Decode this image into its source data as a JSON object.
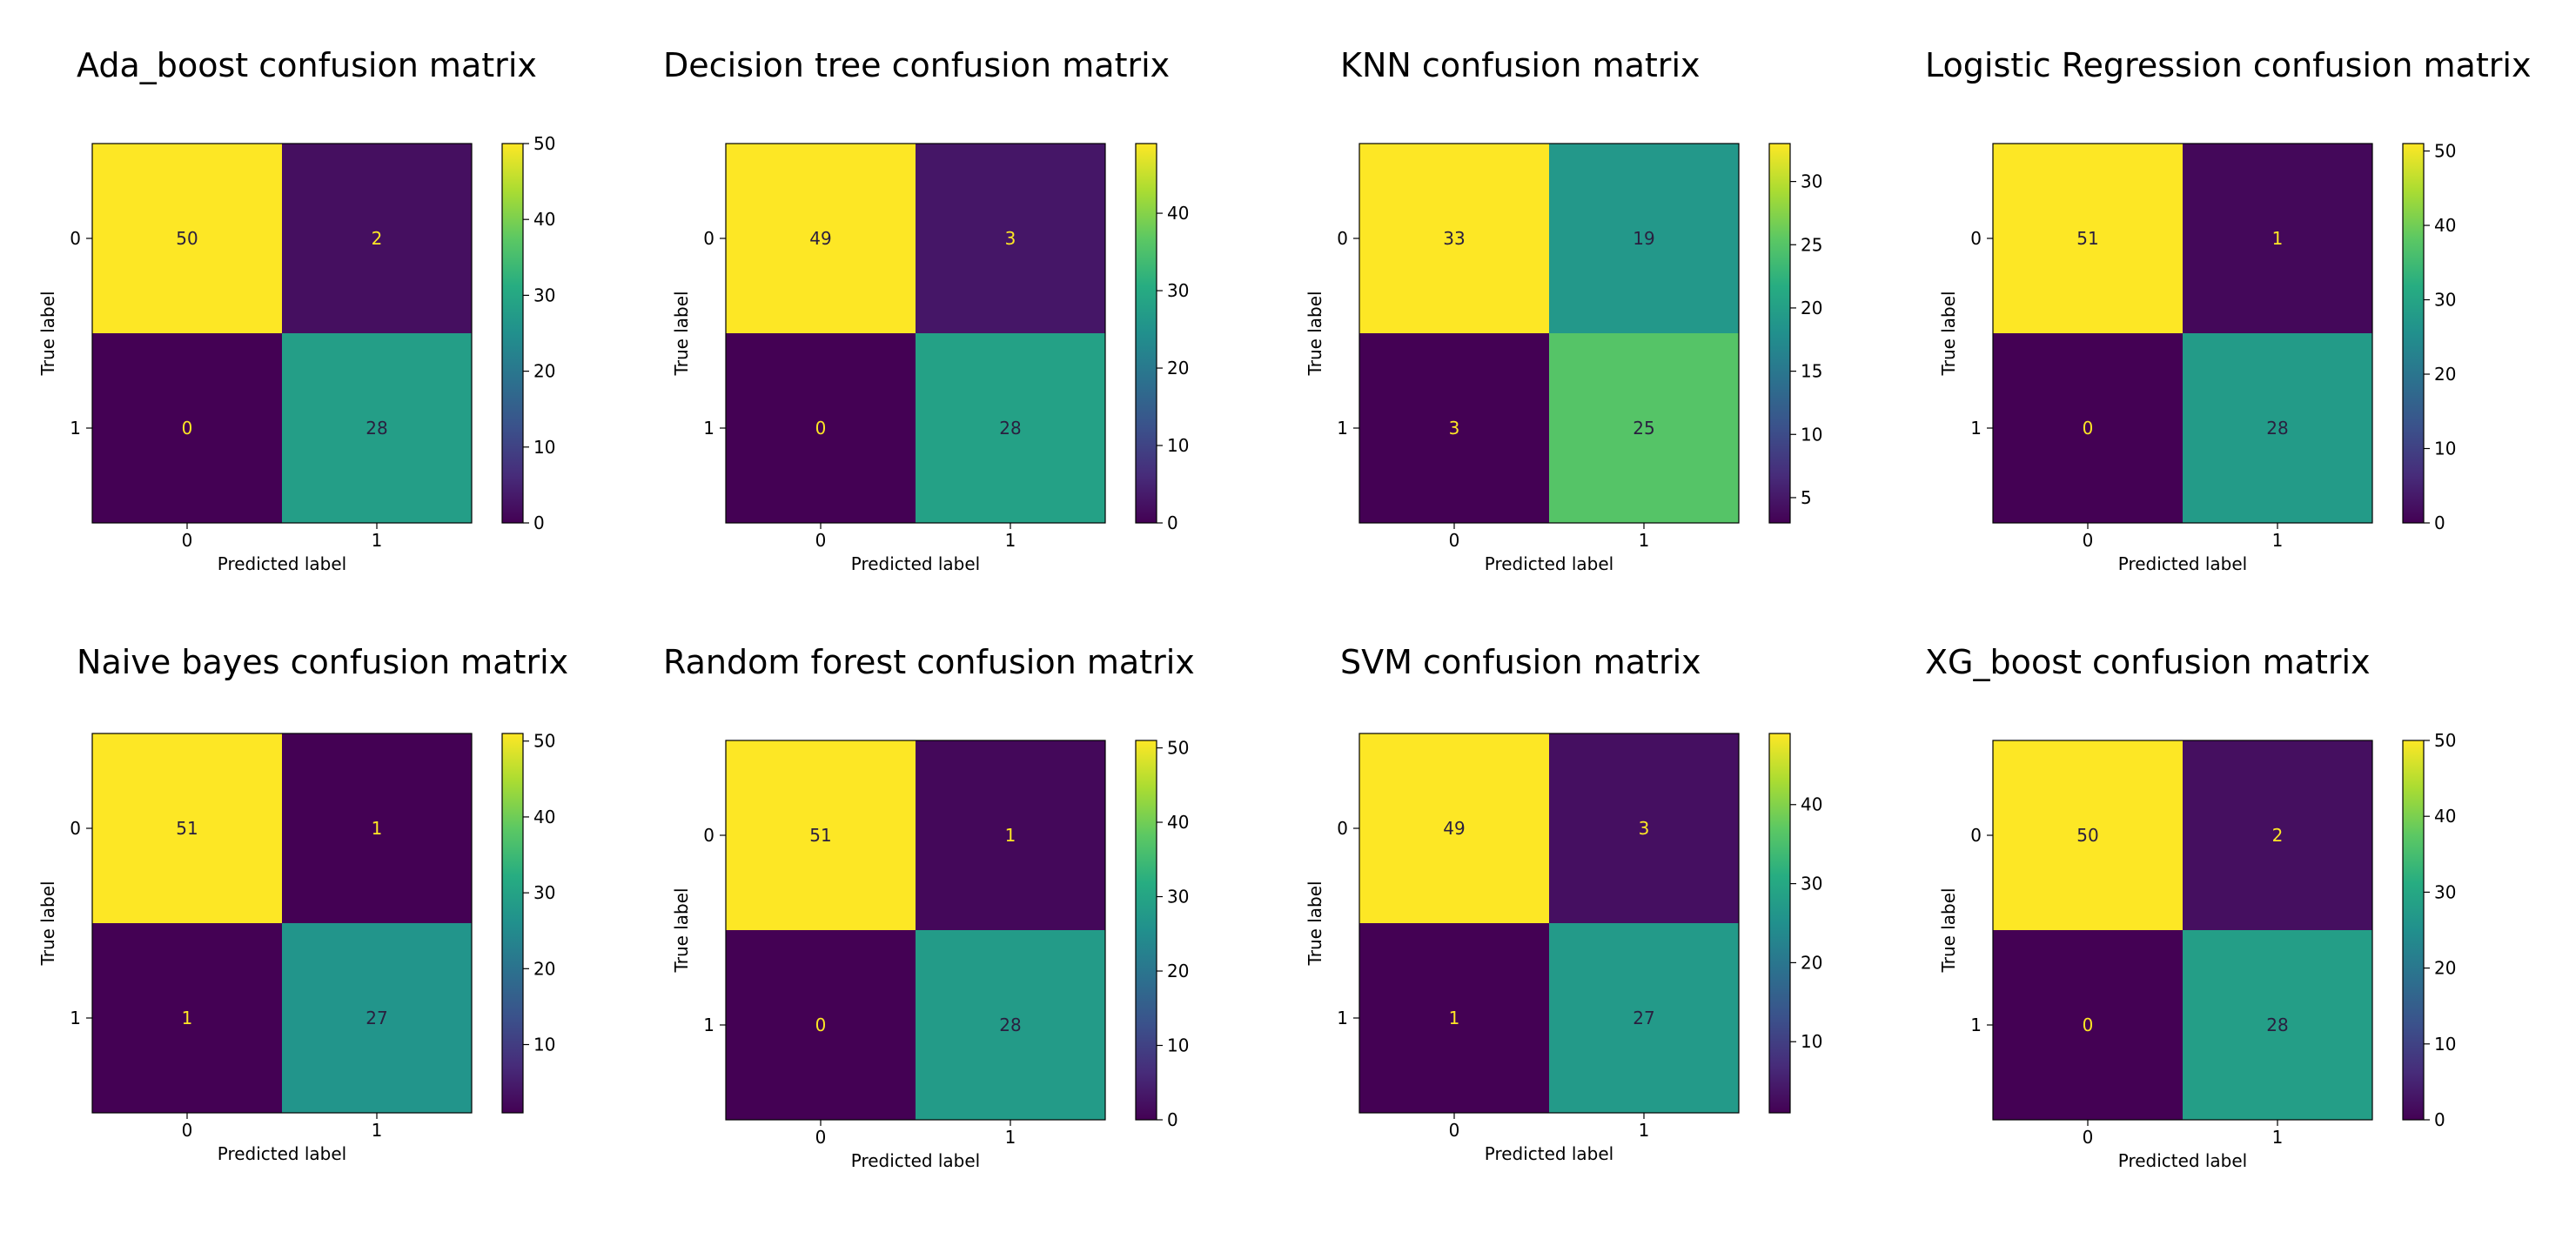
{
  "chart_data": [
    {
      "type": "heatmap",
      "title": "Ada_boost confusion matrix",
      "xlabel": "Predicted label",
      "ylabel": "True label",
      "x_categories": [
        "0",
        "1"
      ],
      "y_categories": [
        "0",
        "1"
      ],
      "matrix": [
        [
          50,
          2
        ],
        [
          0,
          28
        ]
      ],
      "colorbar": {
        "range": [
          0,
          50
        ],
        "ticks": [
          0,
          10,
          20,
          30,
          40,
          50
        ]
      }
    },
    {
      "type": "heatmap",
      "title": "Decision tree confusion matrix",
      "xlabel": "Predicted label",
      "ylabel": "True label",
      "x_categories": [
        "0",
        "1"
      ],
      "y_categories": [
        "0",
        "1"
      ],
      "matrix": [
        [
          49,
          3
        ],
        [
          0,
          28
        ]
      ],
      "colorbar": {
        "range": [
          0,
          49
        ],
        "ticks": [
          0,
          10,
          20,
          30,
          40
        ]
      }
    },
    {
      "type": "heatmap",
      "title": "KNN confusion matrix",
      "xlabel": "Predicted label",
      "ylabel": "True label",
      "x_categories": [
        "0",
        "1"
      ],
      "y_categories": [
        "0",
        "1"
      ],
      "matrix": [
        [
          33,
          19
        ],
        [
          3,
          25
        ]
      ],
      "colorbar": {
        "range": [
          3,
          33
        ],
        "ticks": [
          5,
          10,
          15,
          20,
          25,
          30
        ]
      }
    },
    {
      "type": "heatmap",
      "title": "Logistic Regression confusion matrix",
      "xlabel": "Predicted label",
      "ylabel": "True label",
      "x_categories": [
        "0",
        "1"
      ],
      "y_categories": [
        "0",
        "1"
      ],
      "matrix": [
        [
          51,
          1
        ],
        [
          0,
          28
        ]
      ],
      "colorbar": {
        "range": [
          0,
          51
        ],
        "ticks": [
          0,
          10,
          20,
          30,
          40,
          50
        ]
      }
    },
    {
      "type": "heatmap",
      "title": "Naive bayes confusion matrix",
      "xlabel": "Predicted label",
      "ylabel": "True label",
      "x_categories": [
        "0",
        "1"
      ],
      "y_categories": [
        "0",
        "1"
      ],
      "matrix": [
        [
          51,
          1
        ],
        [
          1,
          27
        ]
      ],
      "colorbar": {
        "range": [
          1,
          51
        ],
        "ticks": [
          10,
          20,
          30,
          40,
          50
        ]
      }
    },
    {
      "type": "heatmap",
      "title": "Random forest confusion matrix",
      "xlabel": "Predicted label",
      "ylabel": "True label",
      "x_categories": [
        "0",
        "1"
      ],
      "y_categories": [
        "0",
        "1"
      ],
      "matrix": [
        [
          51,
          1
        ],
        [
          0,
          28
        ]
      ],
      "colorbar": {
        "range": [
          0,
          51
        ],
        "ticks": [
          0,
          10,
          20,
          30,
          40,
          50
        ]
      }
    },
    {
      "type": "heatmap",
      "title": "SVM confusion matrix",
      "xlabel": "Predicted label",
      "ylabel": "True label",
      "x_categories": [
        "0",
        "1"
      ],
      "y_categories": [
        "0",
        "1"
      ],
      "matrix": [
        [
          49,
          3
        ],
        [
          1,
          27
        ]
      ],
      "colorbar": {
        "range": [
          1,
          49
        ],
        "ticks": [
          10,
          20,
          30,
          40
        ]
      }
    },
    {
      "type": "heatmap",
      "title": "XG_boost confusion matrix",
      "xlabel": "Predicted label",
      "ylabel": "True label",
      "x_categories": [
        "0",
        "1"
      ],
      "y_categories": [
        "0",
        "1"
      ],
      "matrix": [
        [
          50,
          2
        ],
        [
          0,
          28
        ]
      ],
      "colorbar": {
        "range": [
          0,
          50
        ],
        "ticks": [
          0,
          10,
          20,
          30,
          40,
          50
        ]
      }
    }
  ]
}
